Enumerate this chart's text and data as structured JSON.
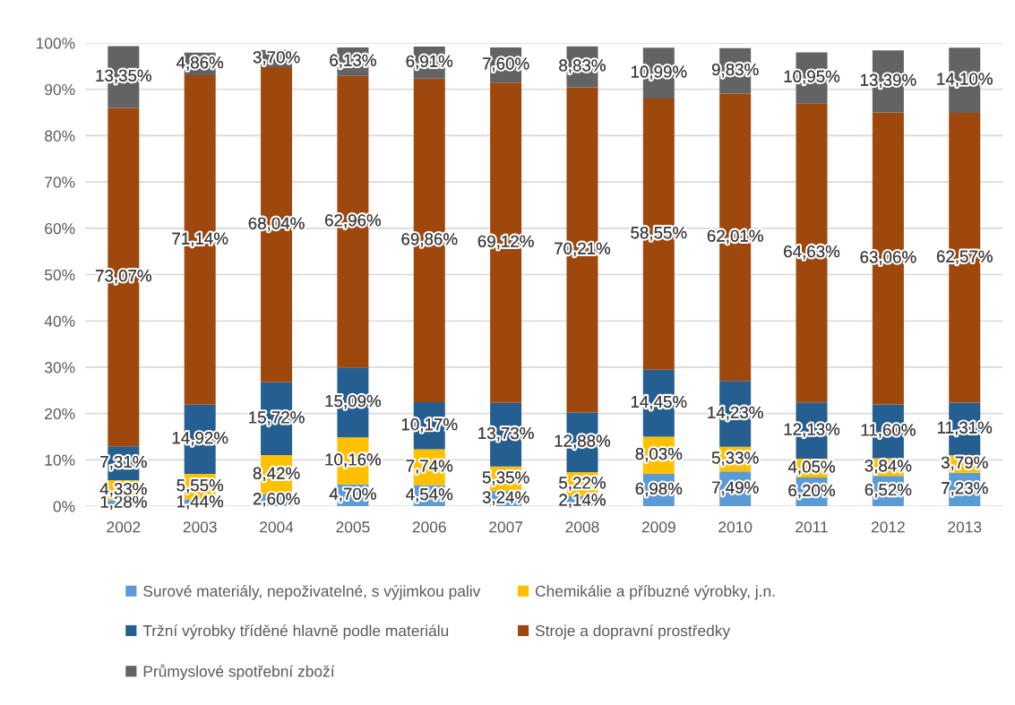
{
  "chart_data": {
    "type": "bar",
    "stacked": true,
    "categories": [
      "2002",
      "2003",
      "2004",
      "2005",
      "2006",
      "2007",
      "2008",
      "2009",
      "2010",
      "2011",
      "2012",
      "2013"
    ],
    "ylim": [
      0,
      100
    ],
    "yticks": [
      {
        "value": 0,
        "label": "0%"
      },
      {
        "value": 10,
        "label": "10%"
      },
      {
        "value": 20,
        "label": "20%"
      },
      {
        "value": 30,
        "label": "30%"
      },
      {
        "value": 40,
        "label": "40%"
      },
      {
        "value": 50,
        "label": "50%"
      },
      {
        "value": 60,
        "label": "60%"
      },
      {
        "value": 70,
        "label": "70%"
      },
      {
        "value": 80,
        "label": "80%"
      },
      {
        "value": 90,
        "label": "90%"
      },
      {
        "value": 100,
        "label": "100%"
      }
    ],
    "grid": "y",
    "legend": "bottom",
    "series": [
      {
        "name": "Surové materiály, nepoživatelné, s výjimkou paliv",
        "color": "#5b9bd5",
        "values": [
          1.28,
          1.44,
          2.6,
          4.7,
          4.54,
          3.24,
          2.14,
          6.98,
          7.49,
          6.2,
          6.52,
          7.23
        ],
        "value_labels": [
          "1,28%",
          "1,44%",
          "2,60%",
          "4,70%",
          "4,54%",
          "3,24%",
          "2,14%",
          "6,98%",
          "7,49%",
          "6,20%",
          "6,52%",
          "7,23%"
        ]
      },
      {
        "name": "Chemikálie a příbuzné výrobky, j.n.",
        "color": "#ffc000",
        "values": [
          4.33,
          5.55,
          8.42,
          10.16,
          7.74,
          5.35,
          5.22,
          8.03,
          5.33,
          4.05,
          3.84,
          3.79
        ],
        "value_labels": [
          "4,33%",
          "5,55%",
          "8,42%",
          "10,16%",
          "7,74%",
          "5,35%",
          "5,22%",
          "8,03%",
          "5,33%",
          "4,05%",
          "3,84%",
          "3,79%"
        ]
      },
      {
        "name": "Tržní výrobky tříděné hlavně podle materiálu",
        "color": "#255e91",
        "values": [
          7.31,
          14.92,
          15.72,
          15.09,
          10.17,
          13.73,
          12.88,
          14.45,
          14.23,
          12.13,
          11.6,
          11.31
        ],
        "value_labels": [
          "7,31%",
          "14,92%",
          "15,72%",
          "15,09%",
          "10,17%",
          "13,73%",
          "12,88%",
          "14,45%",
          "14,23%",
          "12,13%",
          "11,60%",
          "11,31%"
        ]
      },
      {
        "name": "Stroje a dopravní prostředky",
        "color": "#9e480e",
        "values": [
          73.07,
          71.14,
          68.04,
          62.96,
          69.86,
          69.12,
          70.21,
          58.55,
          62.01,
          64.63,
          63.06,
          62.57
        ],
        "value_labels": [
          "73,07%",
          "71,14%",
          "68,04%",
          "62,96%",
          "69,86%",
          "69,12%",
          "70,21%",
          "58,55%",
          "62,01%",
          "64,63%",
          "63,06%",
          "62,57%"
        ]
      },
      {
        "name": "Průmyslové spotřební zboží",
        "color": "#636363",
        "values": [
          13.35,
          4.86,
          3.7,
          6.13,
          6.91,
          7.6,
          8.83,
          10.99,
          9.83,
          10.95,
          13.39,
          14.1
        ],
        "value_labels": [
          "13,35%",
          "4,86%",
          "3,70%",
          "6,13%",
          "6,91%",
          "7,60%",
          "8,83%",
          "10,99%",
          "9,83%",
          "10,95%",
          "13,39%",
          "14,10%"
        ]
      }
    ]
  }
}
